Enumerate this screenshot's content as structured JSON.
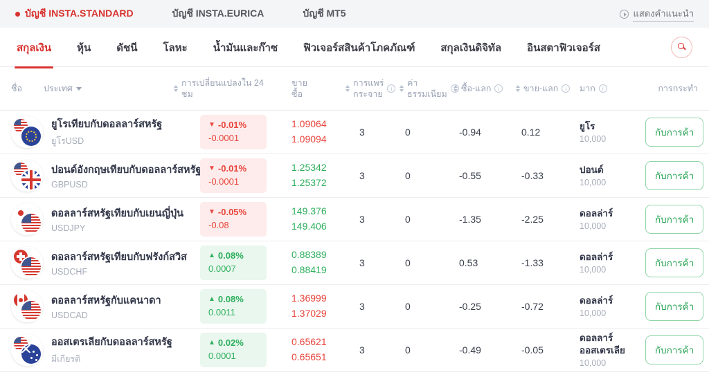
{
  "colors": {
    "accent_red": "#d8322f",
    "price_red": "#e8453c",
    "price_green": "#2eaf5d",
    "badge_down_bg": "#fdeceb",
    "badge_up_bg": "#e9f7ee",
    "button_border": "#8fd6a8"
  },
  "topbar": {
    "accounts": [
      {
        "label": "บัญชี INSTA.STANDARD",
        "active": true
      },
      {
        "label": "บัญชี INSTA.EURICA",
        "active": false
      },
      {
        "label": "บัญชี MT5",
        "active": false
      }
    ],
    "hint_label": "แสดงคำแนะนำ",
    "hint_icon": "play-circle-icon"
  },
  "tabbar": {
    "tabs": [
      {
        "label": "สกุลเงิน",
        "active": true
      },
      {
        "label": "หุ้น",
        "active": false
      },
      {
        "label": "ดัชนี",
        "active": false
      },
      {
        "label": "โลหะ",
        "active": false
      },
      {
        "label": "น้ำมันและก๊าซ",
        "active": false
      },
      {
        "label": "ฟิวเจอร์สสินค้าโภคภัณฑ์",
        "active": false
      },
      {
        "label": "สกุลเงินดิจิทัล",
        "active": false
      },
      {
        "label": "อินสตาฟิวเจอร์ส",
        "active": false
      }
    ],
    "search_icon": "search-icon"
  },
  "table": {
    "header": {
      "name": "ชื่อ",
      "country": "ประเทศ",
      "change_line1": "การเปลี่ยนแปลงใน 24",
      "change_line2": "ชม",
      "sell": "ขาย",
      "buy": "ซื้อ",
      "spread_line1": "การแพร่",
      "spread_line2": "กระจาย",
      "commission_line1": "ค่า",
      "commission_line2": "ธรรมเนียม",
      "buy_swap": "ซื้อ-แลก",
      "sell_swap": "ขาย-แลก",
      "lot": "มาก",
      "action": "การกระทำ"
    },
    "trade_button": "กับการค้า",
    "rows": [
      {
        "name": "ยูโรเทียบกับดอลลาร์สหรัฐ",
        "symbol": "ยูโรUSD",
        "direction": "down",
        "change_pct": "-0.01%",
        "change_value": "-0.0001",
        "sell": "1.09064",
        "buy": "1.09094",
        "price_color": "red",
        "spread": "3",
        "commission": "0",
        "buy_swap": "-0.94",
        "sell_swap": "0.12",
        "lot_currency": "ยูโร",
        "lot_size": "10,000",
        "flag": {
          "back": "us",
          "front": "eu",
          "icon": "eur-usd-flags-icon"
        }
      },
      {
        "name": "ปอนด์อังกฤษเทียบกับดอลลาร์สหรัฐ",
        "symbol": "GBPUSD",
        "direction": "down",
        "change_pct": "-0.01%",
        "change_value": "-0.0001",
        "sell": "1.25342",
        "buy": "1.25372",
        "price_color": "green",
        "spread": "3",
        "commission": "0",
        "buy_swap": "-0.55",
        "sell_swap": "-0.33",
        "lot_currency": "ปอนด์",
        "lot_size": "10,000",
        "flag": {
          "back": "us",
          "front": "gb",
          "icon": "gbp-usd-flags-icon"
        }
      },
      {
        "name": "ดอลลาร์สหรัฐเทียบกับเยนญี่ปุ่น",
        "symbol": "USDJPY",
        "direction": "down",
        "change_pct": "-0.05%",
        "change_value": "-0.08",
        "sell": "149.376",
        "buy": "149.406",
        "price_color": "green",
        "spread": "3",
        "commission": "0",
        "buy_swap": "-1.35",
        "sell_swap": "-2.25",
        "lot_currency": "ดอลล่าร์",
        "lot_size": "10,000",
        "flag": {
          "back": "jp",
          "front": "us",
          "icon": "usd-jpy-flags-icon"
        }
      },
      {
        "name": "ดอลลาร์สหรัฐเทียบกับฟรังก์สวิส",
        "symbol": "USDCHF",
        "direction": "up",
        "change_pct": "0.08%",
        "change_value": "0.0007",
        "sell": "0.88389",
        "buy": "0.88419",
        "price_color": "green",
        "spread": "3",
        "commission": "0",
        "buy_swap": "0.53",
        "sell_swap": "-1.33",
        "lot_currency": "ดอลล่าร์",
        "lot_size": "10,000",
        "flag": {
          "back": "ch",
          "front": "us",
          "icon": "usd-chf-flags-icon"
        }
      },
      {
        "name": "ดอลลาร์สหรัฐกับแคนาดา",
        "symbol": "USDCAD",
        "direction": "up",
        "change_pct": "0.08%",
        "change_value": "0.0011",
        "sell": "1.36999",
        "buy": "1.37029",
        "price_color": "red",
        "spread": "3",
        "commission": "0",
        "buy_swap": "-0.25",
        "sell_swap": "-0.72",
        "lot_currency": "ดอลล่าร์",
        "lot_size": "10,000",
        "flag": {
          "back": "ca",
          "front": "us",
          "icon": "usd-cad-flags-icon"
        }
      },
      {
        "name": "ออสเตรเลียกับดอลลาร์สหรัฐ",
        "symbol": "มีเกียรติ",
        "direction": "up",
        "change_pct": "0.02%",
        "change_value": "0.0001",
        "sell": "0.65621",
        "buy": "0.65651",
        "price_color": "red",
        "spread": "3",
        "commission": "0",
        "buy_swap": "-0.49",
        "sell_swap": "-0.05",
        "lot_currency": "ดอลลาร์ออสเตรเลีย",
        "lot_size": "10,000",
        "flag": {
          "back": "us",
          "front": "au",
          "icon": "aud-usd-flags-icon"
        }
      }
    ]
  }
}
